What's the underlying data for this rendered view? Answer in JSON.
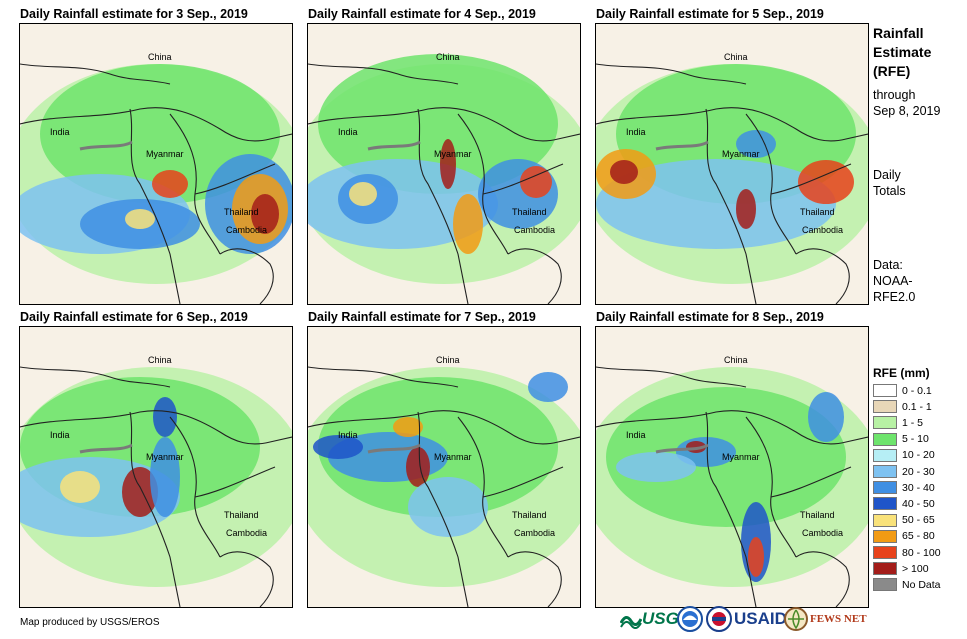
{
  "panels": [
    {
      "title": "Daily Rainfall estimate for 3 Sep., 2019",
      "labels": [
        "China",
        "India",
        "Myanmar",
        "Thailand",
        "Cambodia"
      ]
    },
    {
      "title": "Daily Rainfall estimate for 4 Sep., 2019",
      "labels": [
        "China",
        "India",
        "Myanmar",
        "Thailand",
        "Cambodia"
      ]
    },
    {
      "title": "Daily Rainfall estimate for 5 Sep., 2019",
      "labels": [
        "China",
        "India",
        "Myanmar",
        "Thailand",
        "Cambodia"
      ]
    },
    {
      "title": "Daily Rainfall estimate for 6 Sep., 2019",
      "labels": [
        "China",
        "India",
        "Myanmar",
        "Thailand",
        "Cambodia"
      ]
    },
    {
      "title": "Daily Rainfall estimate for 7 Sep., 2019",
      "labels": [
        "China",
        "India",
        "Myanmar",
        "Thailand",
        "Cambodia"
      ]
    },
    {
      "title": "Daily Rainfall estimate for 8 Sep., 2019",
      "labels": [
        "China",
        "India",
        "Myanmar",
        "Thailand",
        "Cambodia"
      ]
    }
  ],
  "sidebar": {
    "title_line1": "Rainfall",
    "title_line2": "Estimate",
    "title_line3": "(RFE)",
    "through": "through",
    "through_date": "Sep 8, 2019",
    "daily": "Daily",
    "totals": "Totals",
    "data_label": "Data:",
    "data_src1": "NOAA-",
    "data_src2": "RFE2.0"
  },
  "legend": {
    "title": "RFE (mm)",
    "items": [
      {
        "label": "0 - 0.1",
        "color": "#ffffff"
      },
      {
        "label": "0.1 - 1",
        "color": "#e8d7b8"
      },
      {
        "label": "1 - 5",
        "color": "#b7f1a4"
      },
      {
        "label": "5 - 10",
        "color": "#6ee46c"
      },
      {
        "label": "10 - 20",
        "color": "#b6eef5"
      },
      {
        "label": "20 - 30",
        "color": "#7ec2f1"
      },
      {
        "label": "30 - 40",
        "color": "#3f8fe3"
      },
      {
        "label": "40 - 50",
        "color": "#1f55c9"
      },
      {
        "label": "50 - 65",
        "color": "#f9e27a"
      },
      {
        "label": "65 - 80",
        "color": "#f29b14"
      },
      {
        "label": "80 - 100",
        "color": "#e7421b"
      },
      {
        "label": "> 100",
        "color": "#a31d1a"
      },
      {
        "label": "No Data",
        "color": "#8a8a8a"
      }
    ]
  },
  "footer": {
    "credit": "Map produced by USGS/EROS"
  },
  "logos": {
    "usgs": "USGS",
    "usaid": "USAID",
    "fewsnet": "FEWS NET"
  }
}
